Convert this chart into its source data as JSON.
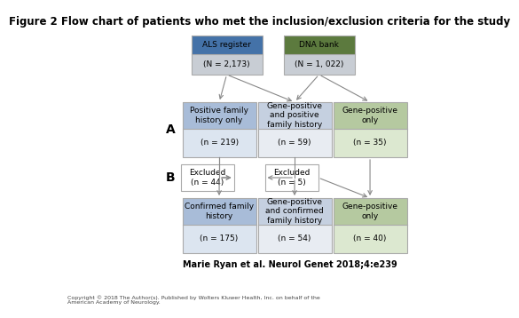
{
  "title": "Figure 2 Flow chart of patients who met the inclusion/exclusion criteria for the study",
  "title_fontsize": 8.5,
  "citation": "Marie Ryan et al. Neurol Genet 2018;4:e239",
  "copyright": "Copyright © 2018 The Author(s). Published by Wolters Kluwer Health, Inc. on behalf of the\nAmerican Academy of Neurology.",
  "als_register_label": "ALS register",
  "als_register_n": "(N = 2,173)",
  "als_color_top": "#4472a8",
  "als_color_bot": "#c8cdd4",
  "dna_bank_label": "DNA bank",
  "dna_bank_n": "(N = 1, 022)",
  "dna_color_top": "#5c7a3e",
  "dna_color_bot": "#c8cdd4",
  "row_a_label": "A",
  "row_b_label": "B",
  "box_a_labels": [
    "Positive family\nhistory only",
    "Gene-positive\nand positive\nfamily history",
    "Gene-positive\nonly"
  ],
  "box_a_ns": [
    "(n = 219)",
    "(n = 59)",
    "(n = 35)"
  ],
  "box_a_top_colors": [
    "#a8bcd8",
    "#c5d0e0",
    "#b5c9a0"
  ],
  "box_a_bot_colors": [
    "#dce5f0",
    "#e8ecf2",
    "#dce8d0"
  ],
  "excluded_left_label": "Excluded\n(n = 44)",
  "excluded_mid_label": "Excluded\n(n = 5)",
  "box_b_labels": [
    "Confirmed family\nhistory",
    "Gene-positive\nand confirmed\nfamily history",
    "Gene-positive\nonly"
  ],
  "box_b_ns": [
    "(n = 175)",
    "(n = 54)",
    "(n = 40)"
  ],
  "box_b_top_colors": [
    "#a8bcd8",
    "#c5d0e0",
    "#b5c9a0"
  ],
  "box_b_bot_colors": [
    "#dce5f0",
    "#e8ecf2",
    "#dce8d0"
  ],
  "bg_color": "#ffffff",
  "arrow_color": "#888888",
  "border_color": "#aaaaaa"
}
